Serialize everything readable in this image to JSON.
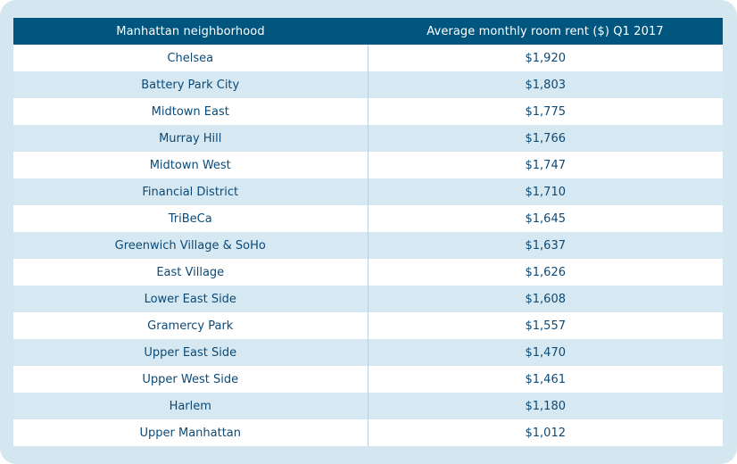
{
  "colors": {
    "frame_bg": "#d4e6ef",
    "header_bg": "#00567f",
    "header_text": "#ffffff",
    "row_alt_bg": "#d6e8f1",
    "cell_text": "#0b4a78"
  },
  "chart_data": {
    "type": "table",
    "columns": [
      "Manhattan neighborhood",
      "Average monthly room rent ($) Q1 2017"
    ],
    "rows": [
      {
        "neighborhood": "Chelsea",
        "rent": "$1,920"
      },
      {
        "neighborhood": "Battery Park City",
        "rent": "$1,803"
      },
      {
        "neighborhood": "Midtown East",
        "rent": "$1,775"
      },
      {
        "neighborhood": "Murray Hill",
        "rent": "$1,766"
      },
      {
        "neighborhood": "Midtown West",
        "rent": "$1,747"
      },
      {
        "neighborhood": "Financial District",
        "rent": "$1,710"
      },
      {
        "neighborhood": "TriBeCa",
        "rent": "$1,645"
      },
      {
        "neighborhood": "Greenwich Village & SoHo",
        "rent": "$1,637"
      },
      {
        "neighborhood": "East Village",
        "rent": "$1,626"
      },
      {
        "neighborhood": "Lower East Side",
        "rent": "$1,608"
      },
      {
        "neighborhood": "Gramercy Park",
        "rent": "$1,557"
      },
      {
        "neighborhood": "Upper East Side",
        "rent": "$1,470"
      },
      {
        "neighborhood": "Upper West Side",
        "rent": "$1,461"
      },
      {
        "neighborhood": "Harlem",
        "rent": "$1,180"
      },
      {
        "neighborhood": "Upper Manhattan",
        "rent": "$1,012"
      }
    ]
  }
}
